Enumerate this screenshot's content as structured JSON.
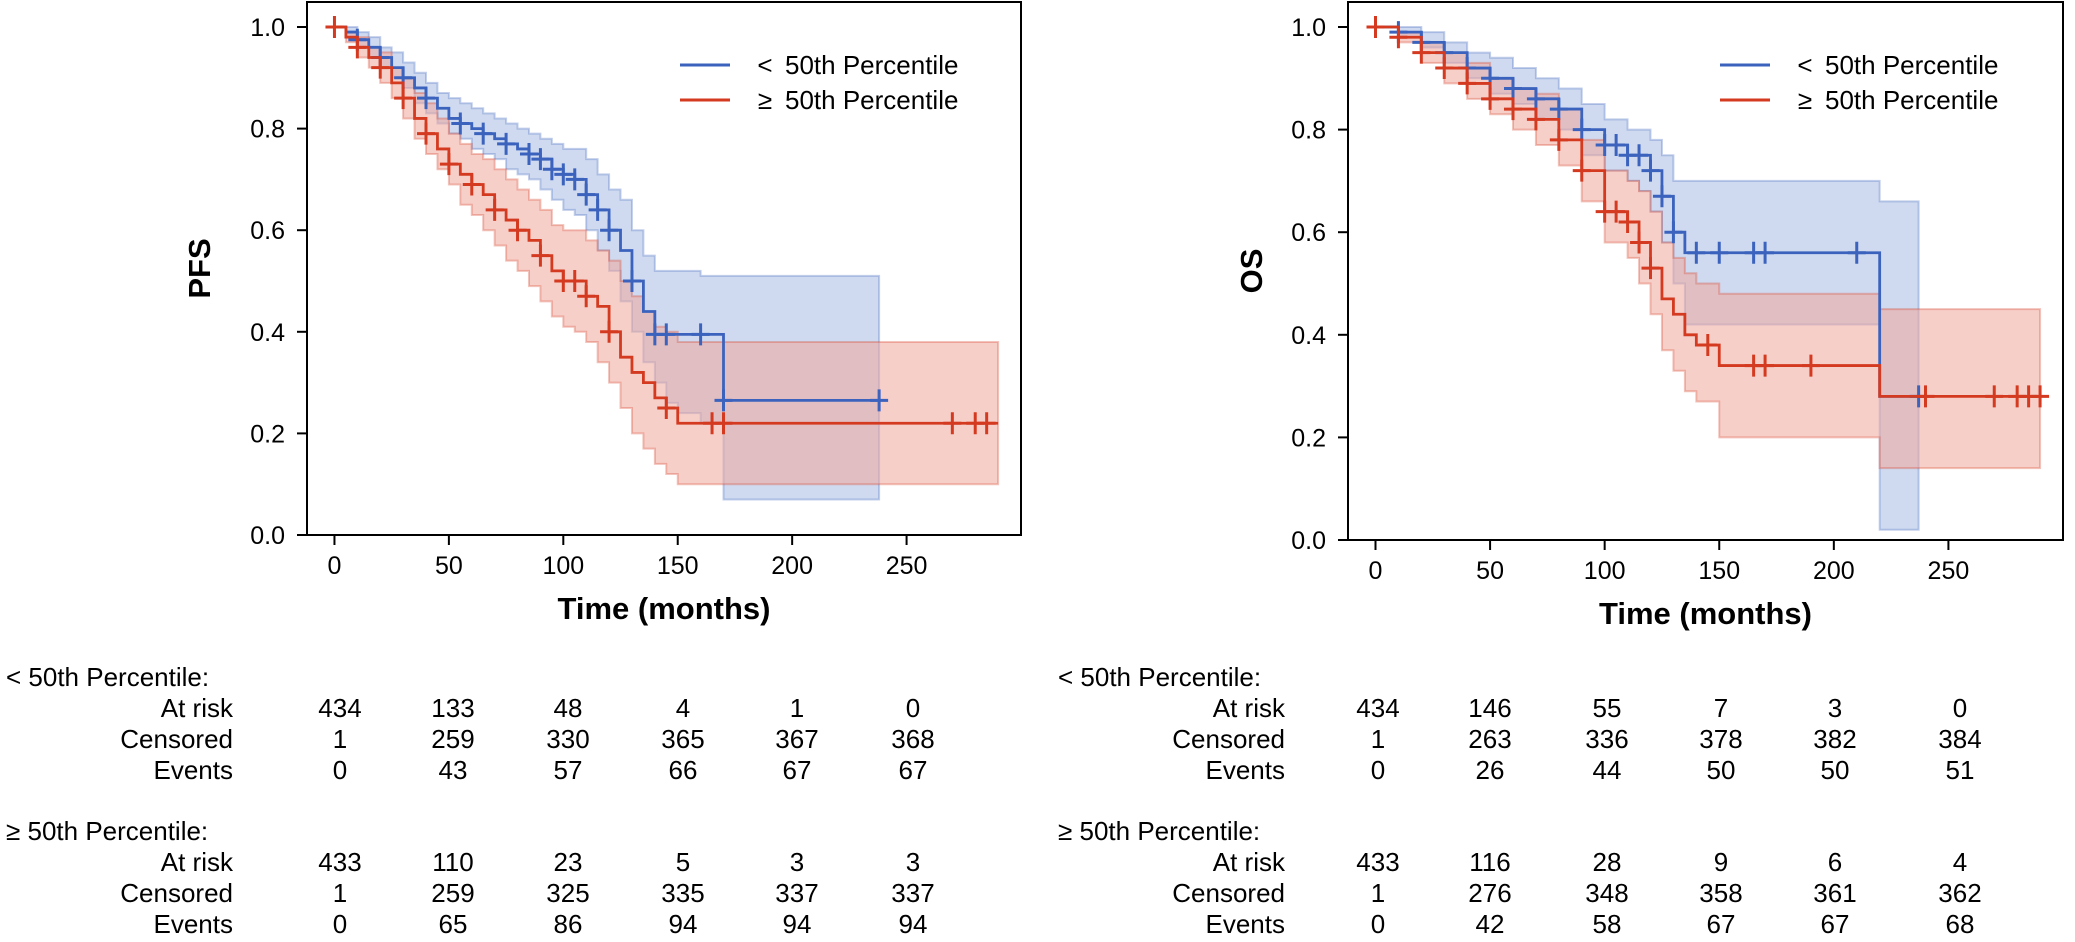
{
  "colors": {
    "group_low": "#3b63bd",
    "group_high": "#d43a20",
    "band_low": "#a8bbe3",
    "band_high": "#f0a89c"
  },
  "chart_data": [
    {
      "type": "line",
      "name": "pfs",
      "ylabel": "PFS",
      "xlabel": "Time (months)",
      "xlim": [
        -12,
        300
      ],
      "ylim": [
        0,
        1.0
      ],
      "xticks": [
        0,
        50,
        100,
        150,
        200,
        250
      ],
      "yticks": [
        0.0,
        0.2,
        0.4,
        0.6,
        0.8,
        1.0
      ],
      "ytick_labels": [
        "0.0",
        "0.2",
        "0.4",
        "0.6",
        "0.8",
        "1.0"
      ],
      "legend_position": "top-right",
      "series": [
        {
          "name": "< 50th Percentile",
          "legend_symbol": "<",
          "legend_text": "50th Percentile",
          "color_key": "group_low",
          "x": [
            0,
            5,
            10,
            15,
            20,
            25,
            30,
            35,
            40,
            45,
            50,
            55,
            60,
            65,
            70,
            75,
            80,
            85,
            90,
            95,
            100,
            105,
            110,
            115,
            120,
            125,
            130,
            135,
            140,
            145,
            150,
            160,
            170,
            200,
            238
          ],
          "y": [
            1.0,
            0.99,
            0.975,
            0.96,
            0.94,
            0.92,
            0.9,
            0.88,
            0.86,
            0.84,
            0.82,
            0.81,
            0.8,
            0.79,
            0.78,
            0.77,
            0.76,
            0.75,
            0.74,
            0.72,
            0.71,
            0.7,
            0.67,
            0.64,
            0.6,
            0.56,
            0.5,
            0.44,
            0.395,
            0.395,
            0.395,
            0.395,
            0.265,
            0.265,
            0.265
          ],
          "ci_lower": [
            1.0,
            0.98,
            0.96,
            0.94,
            0.92,
            0.9,
            0.88,
            0.85,
            0.83,
            0.81,
            0.79,
            0.78,
            0.76,
            0.75,
            0.74,
            0.72,
            0.71,
            0.7,
            0.68,
            0.66,
            0.64,
            0.63,
            0.6,
            0.56,
            0.52,
            0.46,
            0.4,
            0.34,
            0.3,
            0.26,
            0.24,
            0.22,
            0.07,
            0.07,
            0.07
          ],
          "ci_upper": [
            1.0,
            1.0,
            0.99,
            0.98,
            0.96,
            0.95,
            0.93,
            0.91,
            0.89,
            0.87,
            0.86,
            0.85,
            0.84,
            0.83,
            0.82,
            0.81,
            0.8,
            0.79,
            0.78,
            0.77,
            0.76,
            0.76,
            0.74,
            0.71,
            0.68,
            0.66,
            0.6,
            0.55,
            0.52,
            0.52,
            0.52,
            0.51,
            0.51,
            0.51,
            0.51
          ],
          "censor_x": [
            10,
            20,
            30,
            40,
            55,
            65,
            75,
            85,
            90,
            95,
            100,
            105,
            110,
            115,
            120,
            130,
            140,
            145,
            160,
            170,
            238
          ],
          "censor_y": [
            0.975,
            0.94,
            0.9,
            0.86,
            0.81,
            0.79,
            0.77,
            0.75,
            0.74,
            0.72,
            0.71,
            0.7,
            0.67,
            0.64,
            0.6,
            0.5,
            0.395,
            0.395,
            0.395,
            0.265,
            0.265
          ]
        },
        {
          "name": "≥ 50th Percentile",
          "legend_symbol": "≥",
          "legend_text": "50th Percentile",
          "color_key": "group_high",
          "x": [
            0,
            5,
            10,
            15,
            20,
            25,
            30,
            35,
            40,
            45,
            50,
            55,
            60,
            65,
            70,
            75,
            80,
            85,
            90,
            95,
            100,
            105,
            110,
            115,
            120,
            125,
            130,
            135,
            140,
            145,
            150,
            290
          ],
          "y": [
            1.0,
            0.98,
            0.96,
            0.94,
            0.92,
            0.89,
            0.86,
            0.82,
            0.79,
            0.76,
            0.73,
            0.71,
            0.69,
            0.67,
            0.64,
            0.62,
            0.6,
            0.58,
            0.55,
            0.52,
            0.5,
            0.5,
            0.47,
            0.45,
            0.4,
            0.35,
            0.32,
            0.3,
            0.27,
            0.25,
            0.22,
            0.22
          ],
          "ci_lower": [
            1.0,
            0.97,
            0.94,
            0.92,
            0.89,
            0.86,
            0.82,
            0.78,
            0.75,
            0.72,
            0.69,
            0.65,
            0.63,
            0.6,
            0.57,
            0.54,
            0.52,
            0.49,
            0.46,
            0.43,
            0.41,
            0.4,
            0.38,
            0.34,
            0.3,
            0.25,
            0.2,
            0.17,
            0.14,
            0.12,
            0.1,
            0.1
          ],
          "ci_upper": [
            1.0,
            0.99,
            0.98,
            0.96,
            0.95,
            0.92,
            0.9,
            0.87,
            0.85,
            0.82,
            0.79,
            0.77,
            0.75,
            0.74,
            0.72,
            0.7,
            0.68,
            0.66,
            0.64,
            0.61,
            0.6,
            0.6,
            0.58,
            0.56,
            0.54,
            0.5,
            0.47,
            0.44,
            0.41,
            0.4,
            0.38,
            0.38
          ],
          "censor_x": [
            0,
            10,
            20,
            30,
            40,
            50,
            60,
            70,
            80,
            90,
            100,
            105,
            110,
            120,
            145,
            165,
            170,
            270,
            280,
            285
          ],
          "censor_y": [
            1.0,
            0.96,
            0.92,
            0.86,
            0.79,
            0.73,
            0.69,
            0.64,
            0.6,
            0.55,
            0.5,
            0.5,
            0.47,
            0.4,
            0.25,
            0.22,
            0.22,
            0.22,
            0.22,
            0.22
          ]
        }
      ]
    },
    {
      "type": "line",
      "name": "os",
      "ylabel": "OS",
      "xlabel": "Time (months)",
      "xlim": [
        -12,
        300
      ],
      "ylim": [
        0,
        1.0
      ],
      "xticks": [
        0,
        50,
        100,
        150,
        200,
        250
      ],
      "yticks": [
        0.0,
        0.2,
        0.4,
        0.6,
        0.8,
        1.0
      ],
      "ytick_labels": [
        "0.0",
        "0.2",
        "0.4",
        "0.6",
        "0.8",
        "1.0"
      ],
      "legend_position": "top-right",
      "series": [
        {
          "name": "< 50th Percentile",
          "legend_symbol": "<",
          "legend_text": "50th Percentile",
          "color_key": "group_low",
          "x": [
            0,
            10,
            20,
            30,
            40,
            50,
            60,
            70,
            80,
            90,
            100,
            110,
            115,
            120,
            125,
            130,
            135,
            140,
            150,
            160,
            170,
            210,
            220,
            237
          ],
          "y": [
            1.0,
            0.99,
            0.97,
            0.95,
            0.92,
            0.9,
            0.88,
            0.86,
            0.84,
            0.8,
            0.77,
            0.75,
            0.75,
            0.72,
            0.67,
            0.6,
            0.56,
            0.56,
            0.56,
            0.56,
            0.56,
            0.56,
            0.28,
            0.28
          ],
          "ci_lower": [
            1.0,
            0.98,
            0.96,
            0.93,
            0.9,
            0.87,
            0.85,
            0.82,
            0.8,
            0.75,
            0.72,
            0.7,
            0.68,
            0.64,
            0.58,
            0.5,
            0.42,
            0.42,
            0.42,
            0.42,
            0.42,
            0.42,
            0.02,
            0.02
          ],
          "ci_upper": [
            1.0,
            1.0,
            0.99,
            0.97,
            0.95,
            0.94,
            0.92,
            0.9,
            0.88,
            0.85,
            0.82,
            0.8,
            0.8,
            0.78,
            0.75,
            0.7,
            0.7,
            0.7,
            0.7,
            0.7,
            0.7,
            0.7,
            0.66,
            0.66
          ],
          "censor_x": [
            10,
            20,
            30,
            40,
            50,
            60,
            70,
            80,
            90,
            100,
            105,
            110,
            115,
            120,
            125,
            130,
            140,
            150,
            165,
            170,
            210,
            237
          ],
          "censor_y": [
            0.99,
            0.97,
            0.95,
            0.92,
            0.9,
            0.88,
            0.86,
            0.84,
            0.8,
            0.77,
            0.77,
            0.75,
            0.75,
            0.72,
            0.67,
            0.6,
            0.56,
            0.56,
            0.56,
            0.56,
            0.56,
            0.28
          ]
        },
        {
          "name": "≥ 50th Percentile",
          "legend_symbol": "≥",
          "legend_text": "50th Percentile",
          "color_key": "group_high",
          "x": [
            0,
            10,
            20,
            30,
            40,
            50,
            60,
            70,
            80,
            90,
            100,
            110,
            115,
            120,
            125,
            130,
            135,
            140,
            150,
            160,
            170,
            190,
            210,
            220,
            290
          ],
          "y": [
            1.0,
            0.98,
            0.95,
            0.92,
            0.89,
            0.86,
            0.84,
            0.82,
            0.78,
            0.72,
            0.64,
            0.62,
            0.58,
            0.53,
            0.47,
            0.44,
            0.4,
            0.38,
            0.34,
            0.34,
            0.34,
            0.34,
            0.34,
            0.28,
            0.28
          ],
          "ci_lower": [
            1.0,
            0.97,
            0.93,
            0.89,
            0.86,
            0.83,
            0.8,
            0.77,
            0.73,
            0.66,
            0.58,
            0.55,
            0.5,
            0.44,
            0.37,
            0.33,
            0.29,
            0.27,
            0.2,
            0.2,
            0.2,
            0.2,
            0.2,
            0.14,
            0.14
          ],
          "ci_upper": [
            1.0,
            0.99,
            0.97,
            0.95,
            0.93,
            0.9,
            0.88,
            0.87,
            0.84,
            0.78,
            0.72,
            0.7,
            0.68,
            0.64,
            0.58,
            0.55,
            0.52,
            0.5,
            0.48,
            0.48,
            0.48,
            0.48,
            0.48,
            0.45,
            0.45
          ],
          "censor_x": [
            0,
            10,
            20,
            30,
            40,
            50,
            60,
            70,
            80,
            90,
            100,
            105,
            110,
            115,
            120,
            145,
            165,
            170,
            190,
            240,
            270,
            280,
            285,
            290
          ],
          "censor_y": [
            1.0,
            0.98,
            0.95,
            0.92,
            0.89,
            0.86,
            0.84,
            0.82,
            0.78,
            0.72,
            0.64,
            0.64,
            0.62,
            0.58,
            0.53,
            0.38,
            0.34,
            0.34,
            0.34,
            0.28,
            0.28,
            0.28,
            0.28,
            0.28
          ]
        }
      ]
    }
  ],
  "risk_tables": [
    {
      "groups": [
        {
          "title": "< 50th Percentile:",
          "rows": [
            {
              "label": "At risk",
              "values": [
                "434",
                "133",
                "48",
                "4",
                "1",
                "0"
              ]
            },
            {
              "label": "Censored",
              "values": [
                "1",
                "259",
                "330",
                "365",
                "367",
                "368"
              ]
            },
            {
              "label": "Events",
              "values": [
                "0",
                "43",
                "57",
                "66",
                "67",
                "67"
              ]
            }
          ]
        },
        {
          "title": "≥ 50th  Percentile:",
          "rows": [
            {
              "label": "At risk",
              "values": [
                "433",
                "110",
                "23",
                "5",
                "3",
                "3"
              ]
            },
            {
              "label": "Censored",
              "values": [
                "1",
                "259",
                "325",
                "335",
                "337",
                "337"
              ]
            },
            {
              "label": "Events",
              "values": [
                "0",
                "65",
                "86",
                "94",
                "94",
                "94"
              ]
            }
          ]
        }
      ]
    },
    {
      "groups": [
        {
          "title": "< 50th Percentile:",
          "rows": [
            {
              "label": "At risk",
              "values": [
                "434",
                "146",
                "55",
                "7",
                "3",
                "0"
              ]
            },
            {
              "label": "Censored",
              "values": [
                "1",
                "263",
                "336",
                "378",
                "382",
                "384"
              ]
            },
            {
              "label": "Events",
              "values": [
                "0",
                "26",
                "44",
                "50",
                "50",
                "51"
              ]
            }
          ]
        },
        {
          "title": "≥ 50th  Percentile:",
          "rows": [
            {
              "label": "At risk",
              "values": [
                "433",
                "116",
                "28",
                "9",
                "6",
                "4"
              ]
            },
            {
              "label": "Censored",
              "values": [
                "1",
                "276",
                "348",
                "358",
                "361",
                "362"
              ]
            },
            {
              "label": "Events",
              "values": [
                "0",
                "42",
                "58",
                "67",
                "67",
                "68"
              ]
            }
          ]
        }
      ]
    }
  ]
}
